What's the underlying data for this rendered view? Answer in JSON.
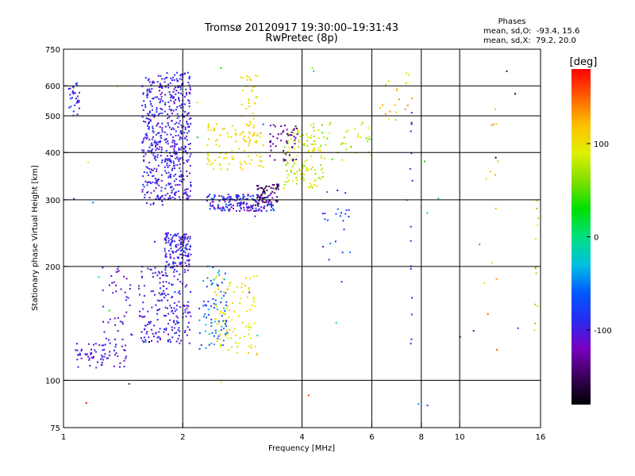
{
  "chart_data": {
    "type": "scatter",
    "title": "Tromsø 20120917 19:30:00–19:31:43",
    "subtitle": "RwPretec (8p)",
    "stats_header": "Phases",
    "stats_line1": "mean, sd,O:  -93.4, 15.6",
    "stats_line2": "mean, sd,X:  79.2, 20.0",
    "xlabel": "Frequency [MHz]",
    "ylabel": "Stationary phase Virtual Height [km]",
    "x_scale": "log",
    "y_scale": "log",
    "xlim": [
      1,
      16
    ],
    "ylim": [
      75,
      750
    ],
    "x_ticks": [
      1,
      2,
      4,
      6,
      8,
      10,
      16
    ],
    "x_tick_labels": [
      "1",
      "2",
      "4",
      "6",
      "8",
      "10",
      "16"
    ],
    "x_gridlines": [
      2,
      4,
      6,
      8,
      10
    ],
    "y_ticks": [
      75,
      100,
      200,
      300,
      400,
      500,
      600,
      750
    ],
    "y_tick_labels": [
      "75",
      "100",
      "200",
      "300",
      "400",
      "500",
      "600",
      "750"
    ],
    "y_gridlines": [
      100,
      200,
      300,
      400,
      500,
      600
    ],
    "grid": true,
    "colorbar": {
      "label": "[deg]",
      "range": [
        -180,
        180
      ],
      "ticks": [
        100,
        0,
        -100
      ],
      "tick_labels": [
        "100",
        "0",
        "-100"
      ],
      "stops": [
        "#000000",
        "#3a005a",
        "#7a00c0",
        "#2a2af0",
        "#0058ff",
        "#00c0e0",
        "#00e080",
        "#00e000",
        "#80e000",
        "#e0f000",
        "#ffc000",
        "#ff6000",
        "#ff0000"
      ]
    },
    "series": [
      {
        "n": 240,
        "x": [
          1.58,
          1.78
        ],
        "y": [
          290,
          640
        ],
        "phase": [
          -115,
          -80
        ]
      },
      {
        "n": 330,
        "x": [
          1.8,
          2.1
        ],
        "y": [
          300,
          650
        ],
        "phase": [
          -115,
          -80
        ]
      },
      {
        "n": 200,
        "x": [
          1.55,
          2.1
        ],
        "y": [
          125,
          200
        ],
        "phase": [
          -115,
          -80
        ]
      },
      {
        "n": 140,
        "x": [
          1.8,
          2.1
        ],
        "y": [
          200,
          245
        ],
        "phase": [
          -115,
          -80
        ]
      },
      {
        "n": 70,
        "x": [
          1.07,
          1.45
        ],
        "y": [
          108,
          125
        ],
        "phase": [
          -120,
          -85
        ]
      },
      {
        "n": 45,
        "x": [
          1.25,
          1.5
        ],
        "y": [
          125,
          200
        ],
        "phase": [
          -120,
          -85
        ]
      },
      {
        "n": 180,
        "x": [
          2.3,
          3.4
        ],
        "y": [
          280,
          310
        ],
        "phase": [
          -130,
          -60
        ]
      },
      {
        "n": 60,
        "x": [
          3.0,
          3.5
        ],
        "y": [
          290,
          330
        ],
        "phase": [
          -165,
          -135
        ]
      },
      {
        "n": 90,
        "x": [
          2.3,
          3.2
        ],
        "y": [
          360,
          480
        ],
        "phase": [
          90,
          120
        ]
      },
      {
        "n": 50,
        "x": [
          2.8,
          3.1
        ],
        "y": [
          420,
          640
        ],
        "phase": [
          90,
          120
        ]
      },
      {
        "n": 120,
        "x": [
          3.6,
          4.6
        ],
        "y": [
          320,
          460
        ],
        "phase": [
          60,
          110
        ]
      },
      {
        "n": 50,
        "x": [
          3.3,
          3.9
        ],
        "y": [
          380,
          480
        ],
        "phase": [
          -150,
          -110
        ]
      },
      {
        "n": 100,
        "x": [
          2.4,
          3.1
        ],
        "y": [
          115,
          190
        ],
        "phase": [
          80,
          120
        ]
      },
      {
        "n": 80,
        "x": [
          2.2,
          2.6
        ],
        "y": [
          120,
          200
        ],
        "phase": [
          -90,
          -20
        ]
      },
      {
        "n": 30,
        "x": [
          1.03,
          1.1
        ],
        "y": [
          500,
          620
        ],
        "phase": [
          -110,
          -70
        ]
      },
      {
        "n": 40,
        "x": [
          4.2,
          6.0
        ],
        "y": [
          380,
          480
        ],
        "phase": [
          40,
          110
        ]
      },
      {
        "n": 24,
        "x": [
          4.5,
          5.3
        ],
        "y": [
          180,
          320
        ],
        "phase": [
          -110,
          -40
        ]
      },
      {
        "n": 20,
        "x": [
          6.3,
          7.6
        ],
        "y": [
          480,
          650
        ],
        "phase": [
          60,
          140
        ]
      },
      {
        "n": 15,
        "x": [
          7.5,
          7.6
        ],
        "y": [
          115,
          650
        ],
        "phase": [
          -120,
          -80
        ]
      },
      {
        "n": 14,
        "x": [
          11.5,
          12.5
        ],
        "y": [
          110,
          540
        ],
        "phase": [
          100,
          160
        ]
      },
      {
        "n": 12,
        "x": [
          15.4,
          15.9
        ],
        "y": [
          130,
          320
        ],
        "phase": [
          40,
          110
        ]
      },
      {
        "n": 35,
        "x": [
          1.05,
          16.0
        ],
        "y": [
          85,
          700
        ],
        "phase": [
          -180,
          180
        ]
      }
    ]
  }
}
